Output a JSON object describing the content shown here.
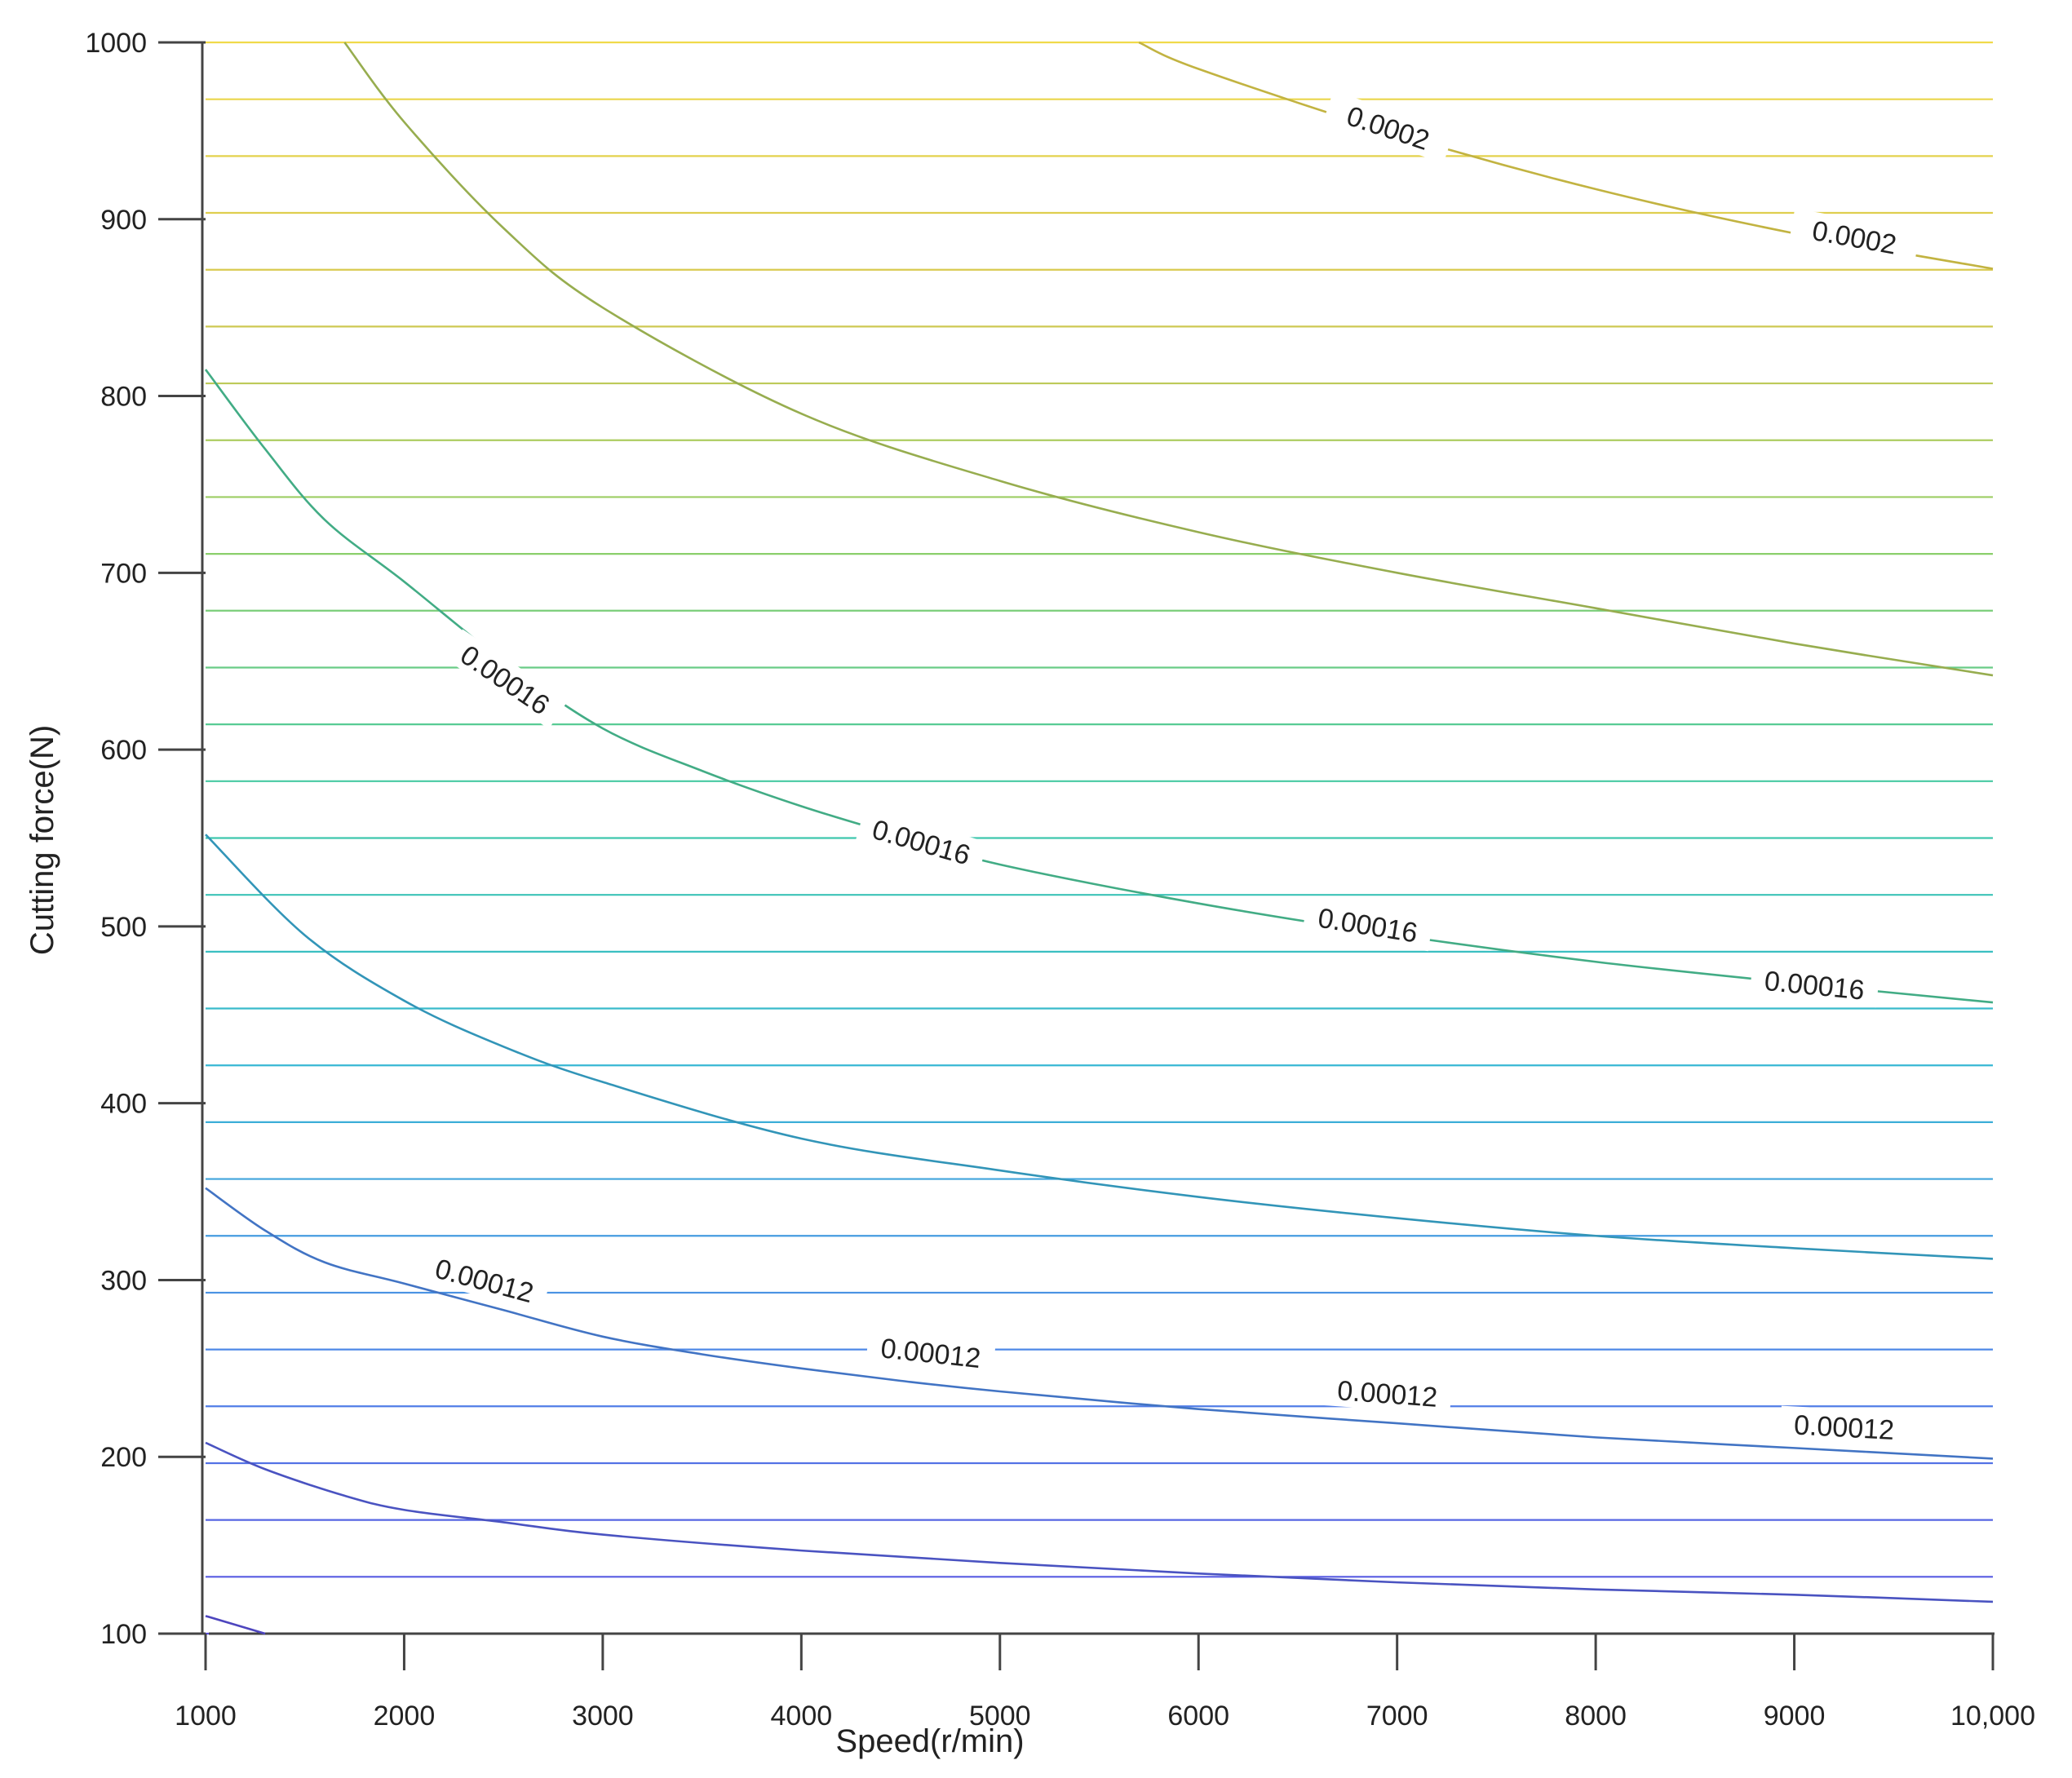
{
  "chart_data": {
    "type": "contour",
    "title": "",
    "xlabel": "Speed(r/min)",
    "ylabel": "Cutting force(N)",
    "xlim": [
      1000,
      10000
    ],
    "ylim": [
      100,
      1000
    ],
    "x_ticks": [
      1000,
      2000,
      3000,
      4000,
      5000,
      6000,
      7000,
      8000,
      9000,
      10000
    ],
    "x_tick_labels": [
      "1000",
      "2000",
      "3000",
      "4000",
      "5000",
      "6000",
      "7000",
      "8000",
      "9000",
      "10,000"
    ],
    "y_ticks": [
      100,
      200,
      300,
      400,
      500,
      600,
      700,
      800,
      900,
      1000
    ],
    "y_tick_labels": [
      "100",
      "200",
      "300",
      "400",
      "500",
      "600",
      "700",
      "800",
      "900",
      "1000"
    ],
    "grid": "mesh",
    "colormap": [
      "#5b4fe0",
      "#4f86e8",
      "#37b8d4",
      "#3fc9a8",
      "#8ccf6a",
      "#d6c850",
      "#f0da4a"
    ],
    "contours": [
      {
        "label": "0.0002",
        "label_positions": [
          [
            6950,
            950
          ],
          [
            9300,
            888
          ]
        ],
        "points": [
          [
            5700,
            1000
          ],
          [
            6000,
            985
          ],
          [
            7000,
            948
          ],
          [
            8000,
            917
          ],
          [
            9000,
            892
          ],
          [
            10000,
            872
          ]
        ]
      },
      {
        "label": "",
        "label_positions": [],
        "points": [
          [
            1700,
            1000
          ],
          [
            2000,
            955
          ],
          [
            2500,
            895
          ],
          [
            3000,
            850
          ],
          [
            4000,
            790
          ],
          [
            5000,
            752
          ],
          [
            6000,
            723
          ],
          [
            7000,
            700
          ],
          [
            8000,
            680
          ],
          [
            9000,
            660
          ],
          [
            10000,
            642
          ]
        ]
      },
      {
        "label": "0.00016",
        "label_positions": [
          [
            2500,
            638
          ],
          [
            4600,
            546
          ],
          [
            6850,
            499
          ],
          [
            9100,
            465
          ]
        ],
        "points": [
          [
            1000,
            815
          ],
          [
            1300,
            770
          ],
          [
            1600,
            730
          ],
          [
            2000,
            695
          ],
          [
            2500,
            650
          ],
          [
            3000,
            612
          ],
          [
            3500,
            588
          ],
          [
            4000,
            568
          ],
          [
            4500,
            551
          ],
          [
            5000,
            535
          ],
          [
            6000,
            513
          ],
          [
            7000,
            495
          ],
          [
            8000,
            480
          ],
          [
            9000,
            468
          ],
          [
            10000,
            457
          ]
        ]
      },
      {
        "label": "",
        "label_positions": [],
        "points": [
          [
            1000,
            552
          ],
          [
            1500,
            495
          ],
          [
            2000,
            458
          ],
          [
            2500,
            432
          ],
          [
            3000,
            412
          ],
          [
            4000,
            380
          ],
          [
            5000,
            362
          ],
          [
            6000,
            347
          ],
          [
            7000,
            335
          ],
          [
            8000,
            325
          ],
          [
            9000,
            318
          ],
          [
            10000,
            312
          ]
        ]
      },
      {
        "label": "0.00012",
        "label_positions": [
          [
            2400,
            298
          ],
          [
            4650,
            257
          ],
          [
            6950,
            234
          ],
          [
            9250,
            215
          ]
        ],
        "points": [
          [
            1000,
            352
          ],
          [
            1300,
            328
          ],
          [
            1600,
            310
          ],
          [
            2000,
            298
          ],
          [
            2500,
            283
          ],
          [
            3000,
            268
          ],
          [
            3500,
            258
          ],
          [
            4000,
            250
          ],
          [
            4500,
            243
          ],
          [
            5000,
            237
          ],
          [
            6000,
            227
          ],
          [
            7000,
            219
          ],
          [
            8000,
            211
          ],
          [
            9000,
            205
          ],
          [
            10000,
            199
          ]
        ]
      },
      {
        "label": "",
        "label_positions": [],
        "points": [
          [
            1000,
            208
          ],
          [
            1300,
            193
          ],
          [
            1700,
            178
          ],
          [
            2000,
            170
          ],
          [
            2500,
            163
          ],
          [
            3000,
            156
          ],
          [
            4000,
            147
          ],
          [
            5000,
            140
          ],
          [
            6000,
            134
          ],
          [
            7000,
            129
          ],
          [
            8000,
            125
          ],
          [
            9000,
            122
          ],
          [
            10000,
            118
          ]
        ]
      },
      {
        "label": "",
        "label_positions": [],
        "points": [
          [
            1000,
            110
          ],
          [
            1300,
            100
          ]
        ]
      }
    ]
  }
}
